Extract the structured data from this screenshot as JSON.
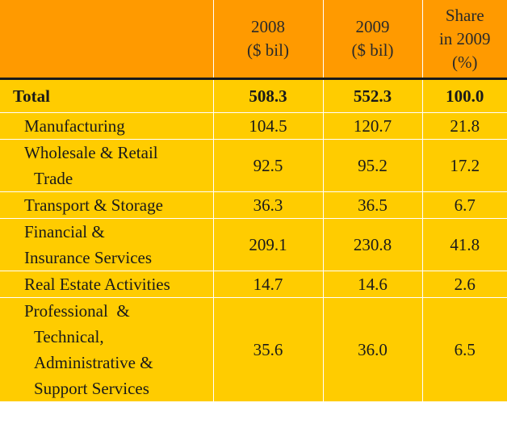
{
  "headers": {
    "col_2008": [
      "2008",
      "($ bil)"
    ],
    "col_2009": [
      "2009",
      "($ bil)"
    ],
    "col_share": [
      "Share",
      "in 2009",
      "(%)"
    ]
  },
  "total": {
    "label": "Total",
    "v2008": "508.3",
    "v2009": "552.3",
    "share": "100.0"
  },
  "rows": [
    {
      "label_lines": [
        "Manufacturing"
      ],
      "v2008": "104.5",
      "v2009": "120.7",
      "share": "21.8"
    },
    {
      "label_lines": [
        "Wholesale & Retail",
        "Trade"
      ],
      "v2008": "92.5",
      "v2009": "95.2",
      "share": "17.2"
    },
    {
      "label_lines": [
        "Transport & Storage"
      ],
      "v2008": "36.3",
      "v2009": "36.5",
      "share": "6.7"
    },
    {
      "label_lines": [
        "Financial &",
        "Insurance Services"
      ],
      "v2008": "209.1",
      "v2009": "230.8",
      "share": "41.8"
    },
    {
      "label_lines": [
        "Real Estate Activities"
      ],
      "v2008": "14.7",
      "v2009": "14.6",
      "share": "2.6"
    },
    {
      "label_lines": [
        "Professional  &",
        "Technical,",
        "Administrative &",
        "Support Services"
      ],
      "v2008": "35.6",
      "v2009": "36.0",
      "share": "6.5"
    }
  ],
  "colors": {
    "header_bg": "#ff9a00",
    "body_bg": "#ffcc00",
    "rule": "#1a1a1a"
  }
}
